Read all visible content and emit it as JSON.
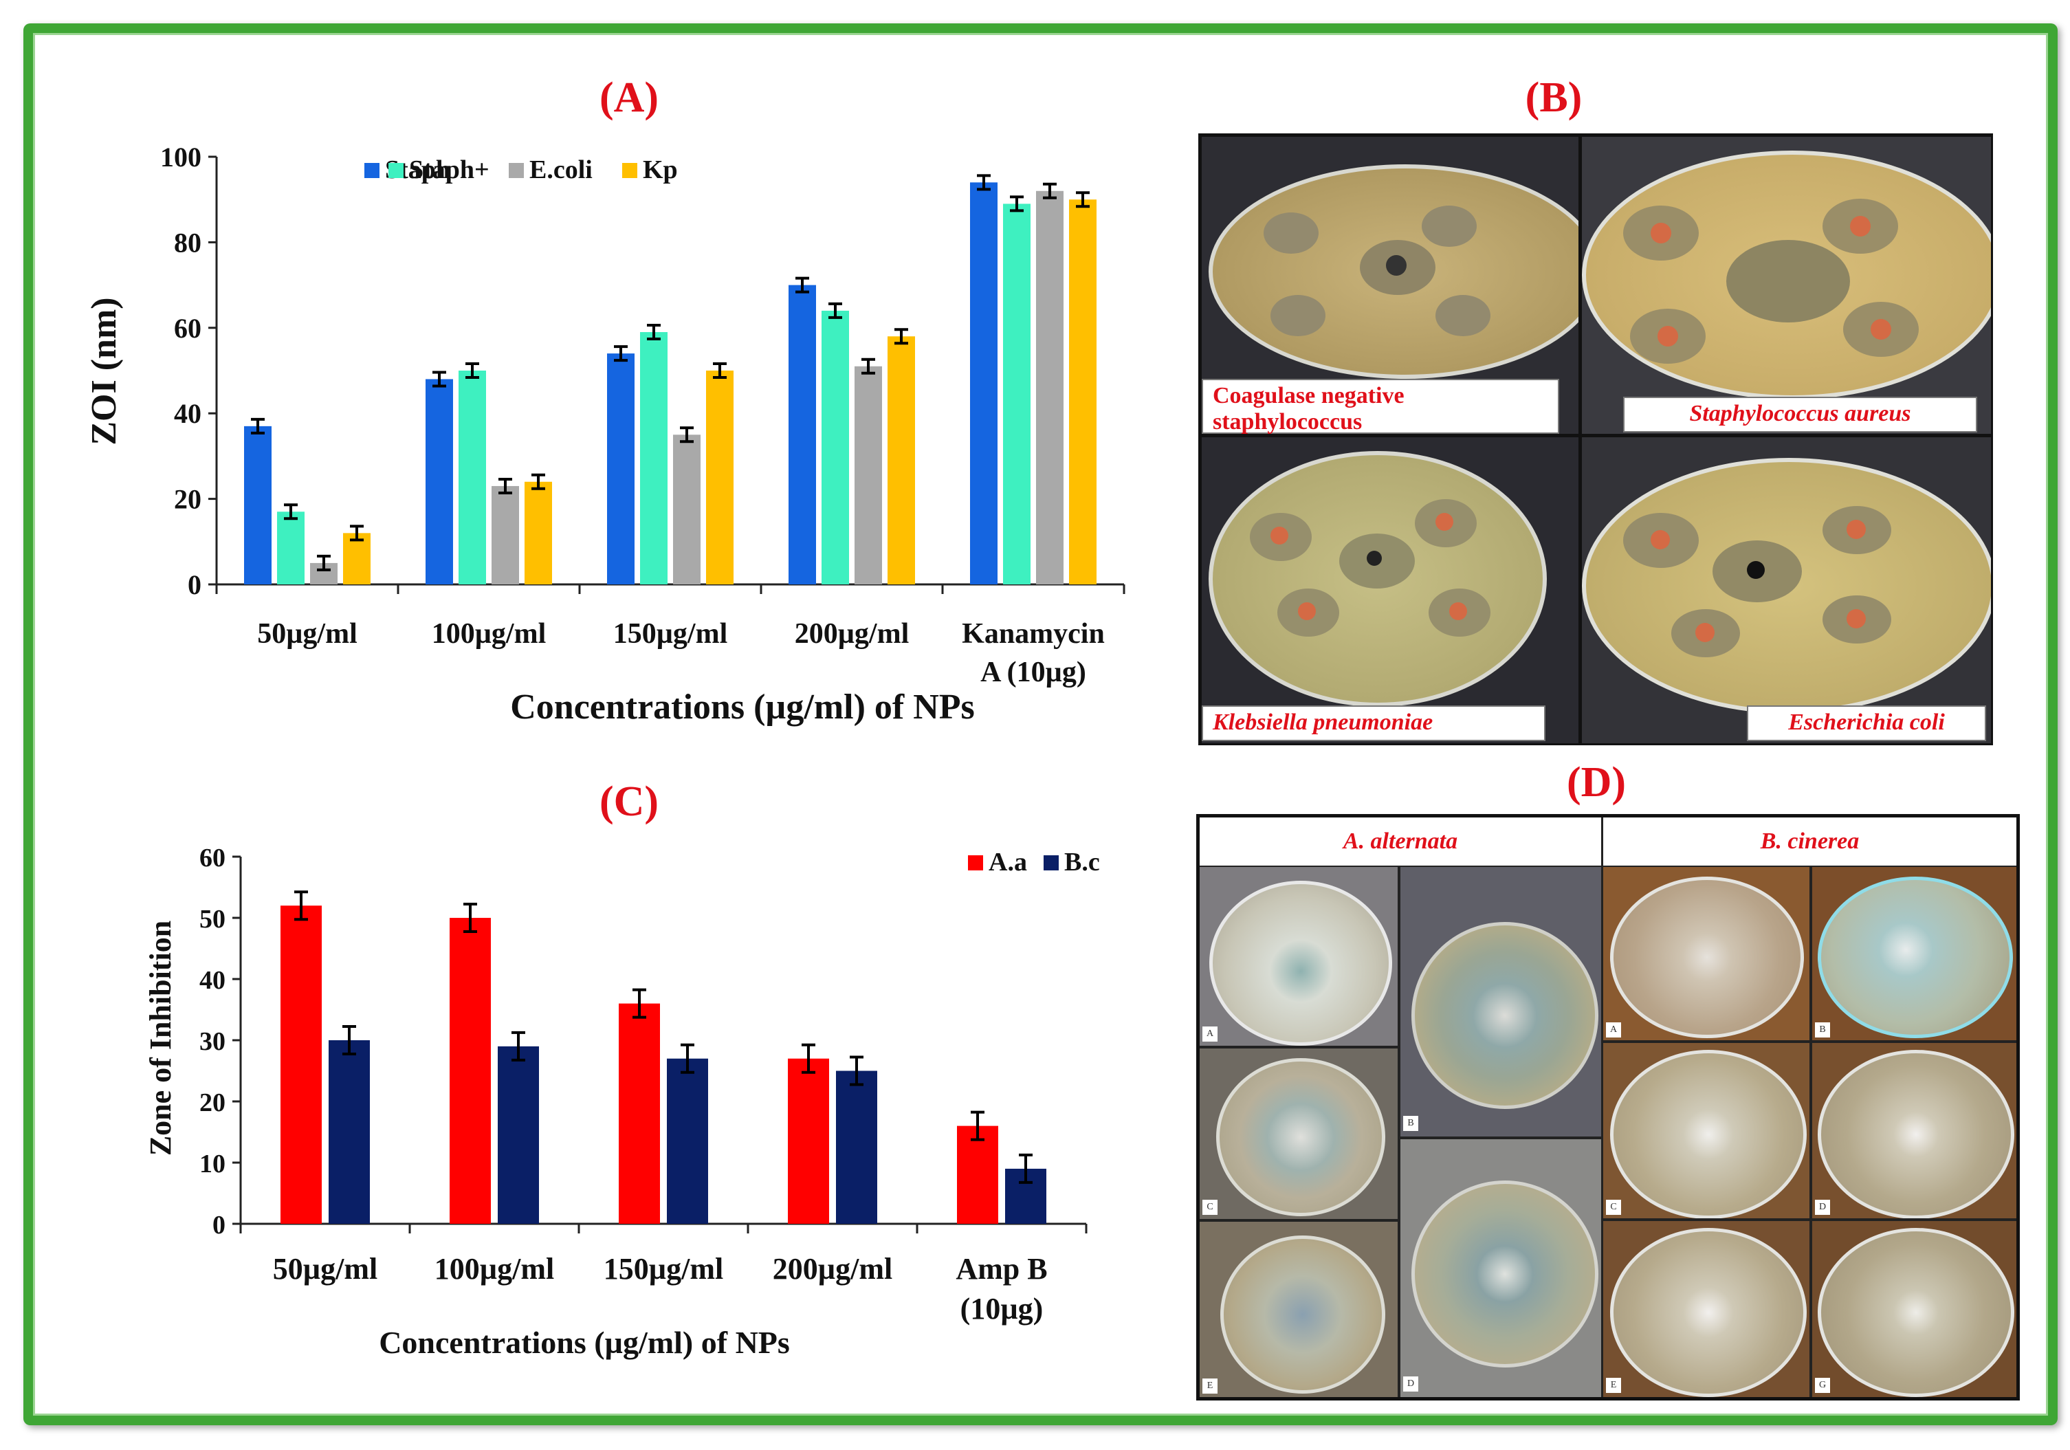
{
  "panels": {
    "a": "(A)",
    "b": "(B)",
    "c": "(C)",
    "d": "(D)"
  },
  "chart_data": [
    {
      "type": "bar",
      "panel": "(A)",
      "title": "",
      "xlabel": "Concentrations (µg/ml) of NPs",
      "ylabel": "ZOI (nm)",
      "ylim": [
        0,
        100
      ],
      "yticks": [
        "0",
        "20",
        "40",
        "60",
        "80",
        "100"
      ],
      "categories": [
        "50µg/ml",
        "100µg/ml",
        "150µg/ml",
        "200µg/ml",
        "Kanamycin A (10µg)"
      ],
      "series": [
        {
          "name": "Staph",
          "color": "#1565e0",
          "values": [
            37,
            48,
            54,
            70,
            94
          ]
        },
        {
          "name": "Staph+",
          "color": "#3ef0c0",
          "values": [
            17,
            50,
            59,
            64,
            89
          ]
        },
        {
          "name": "E.coli",
          "color": "#a9a9a9",
          "values": [
            5,
            23,
            35,
            51,
            92
          ]
        },
        {
          "name": "Kp",
          "color": "#ffbf00",
          "values": [
            12,
            24,
            50,
            58,
            90
          ]
        }
      ],
      "legend": "top-left"
    },
    {
      "type": "bar",
      "panel": "(C)",
      "title": "",
      "xlabel": "Concentrations (µg/ml) of NPs",
      "ylabel": "Zone of Inhibition",
      "ylim": [
        0,
        60
      ],
      "yticks": [
        "0",
        "10",
        "20",
        "30",
        "40",
        "50",
        "60"
      ],
      "categories": [
        "50µg/ml",
        "100µg/ml",
        "150µg/ml",
        "200µg/ml",
        "Amp B (10µg)"
      ],
      "series": [
        {
          "name": "A.a",
          "color": "#ff0000",
          "values": [
            52,
            50,
            36,
            27,
            16
          ]
        },
        {
          "name": "B.c",
          "color": "#0a1f66",
          "values": [
            30,
            29,
            27,
            25,
            9
          ]
        }
      ],
      "legend": "top-right"
    }
  ],
  "panel_b": {
    "labels": [
      "Coagulase negative staphylococcus",
      "Staphylococcus aureus",
      "Klebsiella pneumoniae",
      "Escherichia coli"
    ]
  },
  "panel_d": {
    "headers": [
      "A. alternata",
      "B. cinerea"
    ]
  }
}
